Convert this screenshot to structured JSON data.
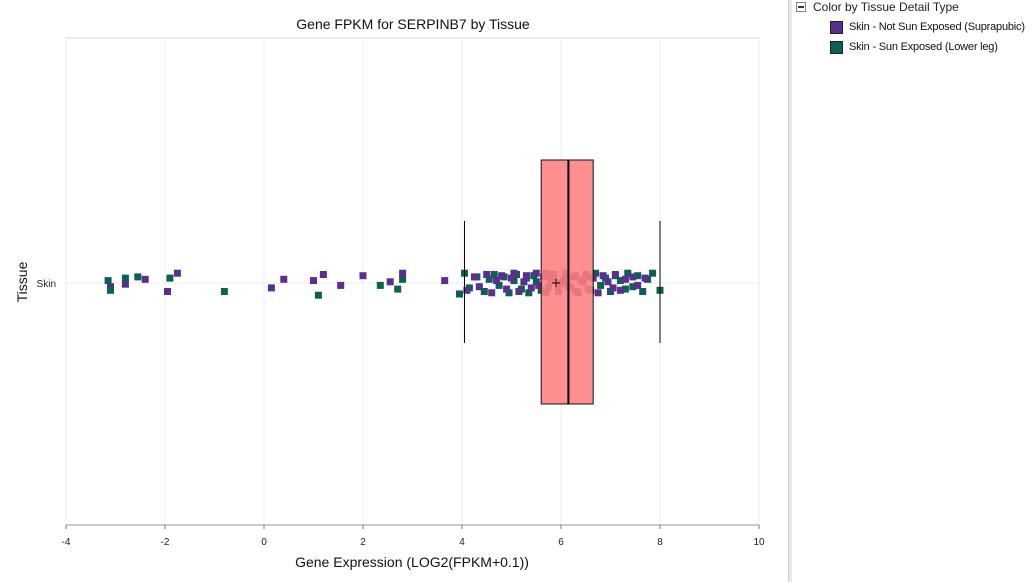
{
  "chart_data": {
    "type": "box",
    "title": "Gene FPKM for SERPINB7 by Tissue",
    "xlabel": "Gene Expression (LOG2(FPKM+0.1))",
    "ylabel": "Tissue",
    "categories": [
      "Skin"
    ],
    "xlim": [
      -4,
      10
    ],
    "x_ticks": [
      "-4",
      "-2",
      "0",
      "2",
      "4",
      "6",
      "8",
      "10"
    ],
    "grid": true,
    "legend_position": "right panel",
    "box": {
      "category": "Skin",
      "min": 4.05,
      "q1": 5.6,
      "median": 6.15,
      "q3": 6.65,
      "max": 8.0,
      "mean": 5.9,
      "fill": "#ff8080"
    },
    "series": [
      {
        "name": "Skin - Not Sun Exposed (Suprapubic)",
        "color": "#5b2e91",
        "x": [
          -3.1,
          -2.8,
          -2.4,
          -1.95,
          -1.75,
          0.15,
          0.4,
          1.0,
          1.2,
          1.55,
          2.0,
          2.55,
          2.8,
          3.65,
          4.1,
          4.25,
          4.35,
          4.5,
          4.6,
          4.7,
          4.8,
          4.9,
          5.0,
          5.05,
          5.15,
          5.25,
          5.3,
          5.4,
          5.5,
          5.55,
          5.65,
          5.7,
          5.8,
          5.85,
          5.95,
          6.0,
          6.1,
          6.15,
          6.25,
          6.3,
          6.4,
          6.5,
          6.55,
          6.65,
          6.75,
          6.85,
          6.95,
          7.05,
          7.1,
          7.2,
          7.3,
          7.45,
          7.55,
          7.7
        ],
        "y": [
          -0.03,
          -0.01,
          0.03,
          -0.07,
          0.08,
          -0.04,
          0.03,
          0.02,
          0.07,
          -0.02,
          0.06,
          0.01,
          0.08,
          0.02,
          -0.06,
          0.05,
          -0.03,
          0.07,
          -0.08,
          0.02,
          0.06,
          -0.05,
          0.04,
          0.08,
          -0.07,
          0.01,
          0.06,
          -0.04,
          0.08,
          -0.02,
          0.05,
          -0.08,
          0.03,
          0.07,
          -0.06,
          0.0,
          0.08,
          -0.03,
          0.05,
          -0.07,
          0.02,
          0.07,
          -0.05,
          0.04,
          -0.08,
          0.06,
          0.01,
          -0.04,
          0.07,
          -0.06,
          0.03,
          0.05,
          -0.02,
          0.04
        ]
      },
      {
        "name": "Skin - Sun Exposed (Lower leg)",
        "color": "#0b6155",
        "x": [
          -3.15,
          -3.1,
          -2.8,
          -2.55,
          -1.9,
          -0.8,
          1.1,
          2.35,
          2.7,
          2.8,
          3.95,
          4.05,
          4.15,
          4.3,
          4.45,
          4.55,
          4.65,
          4.75,
          4.85,
          4.95,
          5.05,
          5.1,
          5.2,
          5.3,
          5.35,
          5.45,
          5.5,
          5.6,
          5.7,
          5.75,
          5.85,
          5.95,
          6.05,
          6.1,
          6.2,
          6.3,
          6.35,
          6.45,
          6.55,
          6.6,
          6.7,
          6.8,
          6.9,
          7.0,
          7.1,
          7.2,
          7.3,
          7.35,
          7.45,
          7.55,
          7.65,
          7.75,
          7.85,
          8.0
        ],
        "y": [
          0.02,
          -0.06,
          0.04,
          0.05,
          0.04,
          -0.07,
          -0.1,
          -0.02,
          -0.05,
          0.03,
          -0.09,
          0.08,
          -0.04,
          0.05,
          -0.07,
          0.03,
          0.07,
          -0.02,
          0.05,
          -0.08,
          0.02,
          0.07,
          -0.05,
          0.04,
          -0.08,
          0.06,
          0.01,
          -0.06,
          0.08,
          -0.03,
          0.05,
          -0.07,
          0.02,
          0.07,
          -0.04,
          0.06,
          -0.08,
          0.01,
          0.05,
          -0.06,
          0.08,
          -0.02,
          0.04,
          -0.07,
          0.06,
          0.02,
          -0.05,
          0.08,
          -0.03,
          0.06,
          -0.07,
          0.03,
          0.08,
          -0.06
        ]
      }
    ]
  },
  "legend": {
    "title": "Color by Tissue Detail Type",
    "items": [
      {
        "label": "Skin - Not Sun Exposed (Suprapubic)",
        "color": "#5b2e91"
      },
      {
        "label": "Skin - Sun Exposed (Lower leg)",
        "color": "#0b6155"
      }
    ]
  }
}
